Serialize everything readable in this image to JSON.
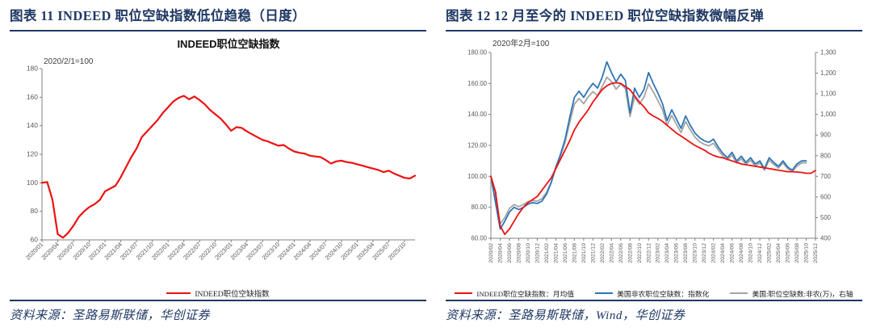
{
  "panels": [
    {
      "heading": "图表 11  INDEED 职位空缺指数低位趋稳（日度）",
      "source": "资料来源：圣路易斯联储，华创证券"
    },
    {
      "heading": "图表 12  12 月至今的 INDEED 职位空缺指数微幅反弹",
      "source": "资料来源：圣路易斯联储，Wind，华创证券"
    }
  ],
  "colors": {
    "accent_navy": "#1F3864",
    "series_red": "#ee1111",
    "series_blue": "#2e75b6",
    "series_gray": "#a5a5a5",
    "axis_line": "#808080",
    "axis_text": "#595959"
  },
  "chart_data": [
    {
      "type": "line",
      "title": "INDEED职位空缺指数",
      "annotation": "2020/2/1=100",
      "x_start": "2020/01",
      "x_end": "2025/12",
      "legend_position": "bottom",
      "grid": false,
      "axes": {
        "left": {
          "min": 60,
          "max": 180,
          "step": 20,
          "decimals": 0
        }
      },
      "x_ticks": [
        "2020/01",
        "2020/04",
        "2020/07",
        "2020/10",
        "2021/01",
        "2021/04",
        "2021/07",
        "2021/10",
        "2022/01",
        "2022/04",
        "2022/07",
        "2022/10",
        "2023/01",
        "2023/04",
        "2023/07",
        "2023/10",
        "2024/01",
        "2024/04",
        "2024/07",
        "2024/10",
        "2025/01",
        "2025/04",
        "2025/07",
        "2025/10"
      ],
      "series": [
        {
          "name": "INDEED职位空缺指数",
          "color": "#ee1111",
          "axis": "left",
          "x_start": "2020/01",
          "values": [
            100,
            100.5,
            88,
            64,
            61.5,
            65,
            70,
            76,
            80,
            83,
            85,
            88,
            94,
            96,
            98,
            104,
            111,
            118,
            124,
            132,
            136,
            140,
            144,
            149,
            153,
            157,
            159.5,
            161,
            158.5,
            160.5,
            158,
            155,
            151,
            148,
            145,
            141,
            136.5,
            139,
            138.5,
            136,
            134,
            132,
            130,
            129,
            127.5,
            126,
            126.5,
            124,
            122,
            121,
            120.5,
            119,
            118.5,
            118,
            116,
            113.5,
            115,
            115.5,
            114.5,
            114,
            113,
            112,
            111,
            110,
            109,
            107.5,
            108.5,
            106.5,
            105,
            103.5,
            103,
            105
          ]
        }
      ]
    },
    {
      "type": "line",
      "annotation": "2020年2月=100",
      "x_start": "2020/02",
      "x_end": "2025/12",
      "legend_position": "bottom",
      "grid": false,
      "axes": {
        "left": {
          "min": 60,
          "max": 180,
          "step": 20,
          "decimals": 2
        },
        "right": {
          "min": 400,
          "max": 1300,
          "step": 100,
          "comma": true
        }
      },
      "x_ticks": [
        "2020/02",
        "2020/04",
        "2020/06",
        "2020/08",
        "2020/10",
        "2020/12",
        "2021/02",
        "2021/04",
        "2021/06",
        "2021/08",
        "2021/10",
        "2021/12",
        "2022/02",
        "2022/04",
        "2022/06",
        "2022/08",
        "2022/10",
        "2022/12",
        "2023/02",
        "2023/04",
        "2023/06",
        "2023/08",
        "2023/10",
        "2023/12",
        "2024/02",
        "2024/04",
        "2024/06",
        "2024/08",
        "2024/10",
        "2024/12",
        "2025/02",
        "2025/04",
        "2025/06",
        "2025/08",
        "2025/10",
        "2025/12"
      ],
      "series": [
        {
          "name": "INDEED职位空缺指数：月均值",
          "color": "#ee1111",
          "axis": "left",
          "x_start": "2020/02",
          "values": [
            100,
            90,
            68,
            62.5,
            66,
            71,
            76,
            80,
            83,
            85,
            87,
            91,
            95,
            99,
            105,
            111,
            117,
            123,
            130,
            135,
            139,
            143,
            148,
            152,
            156,
            158.5,
            160,
            160.5,
            160,
            158,
            156,
            152,
            148,
            145,
            141,
            139,
            137.5,
            135.5,
            133,
            130.5,
            128,
            126,
            124,
            122,
            120,
            118.5,
            117,
            115,
            113.5,
            112.5,
            112,
            111,
            110,
            109,
            108,
            107.5,
            107,
            106.5,
            106,
            105.5,
            105,
            104.5,
            104,
            103.5,
            103,
            103,
            102.8,
            102.5,
            102,
            102,
            103.8
          ]
        },
        {
          "name": "美国非农职位空缺数：指数化",
          "color": "#2e75b6",
          "axis": "left",
          "x_start": "2020/02",
          "values": [
            100,
            83,
            66,
            71,
            77,
            80,
            78.5,
            80,
            82,
            83,
            82.5,
            84,
            88.5,
            96,
            106,
            114,
            124,
            138,
            151,
            155,
            151,
            156,
            160,
            157,
            164,
            174,
            167,
            161,
            166,
            162,
            141,
            157,
            151,
            156,
            167,
            160,
            154,
            147,
            136,
            143,
            137,
            131,
            139,
            133,
            128,
            125,
            123,
            122,
            124,
            119,
            115,
            112,
            115.5,
            110,
            113,
            109,
            112,
            108,
            110,
            105,
            112,
            109,
            106.5,
            110,
            106,
            104,
            108,
            110,
            110
          ]
        },
        {
          "name": "美国:职位空缺数:非农(万)，右轴",
          "color": "#a5a5a5",
          "axis": "right",
          "x_start": "2020/02",
          "values": [
            700,
            590,
            470,
            500,
            545,
            563,
            553,
            563,
            577,
            583,
            580,
            592,
            622,
            672,
            740,
            797,
            865,
            960,
            1050,
            1077,
            1052,
            1085,
            1110,
            1092,
            1135,
            1180,
            1160,
            1122,
            1148,
            1125,
            990,
            1085,
            1050,
            1083,
            1148,
            1110,
            1068,
            1023,
            948,
            995,
            953,
            912,
            965,
            925,
            890,
            868,
            855,
            848,
            860,
            828,
            800,
            780,
            803,
            765,
            785,
            758,
            778,
            750,
            765,
            730,
            778,
            758,
            740,
            765,
            737,
            723,
            750,
            765,
            765
          ]
        }
      ]
    }
  ]
}
